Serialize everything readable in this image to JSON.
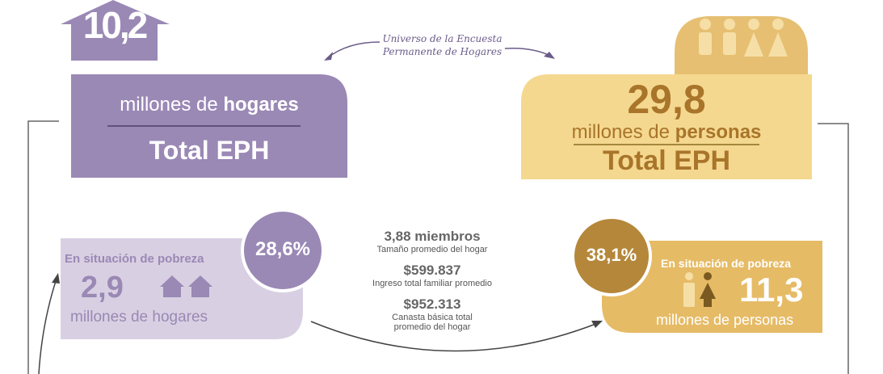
{
  "households": {
    "value": "10,2",
    "unit": "millones de ",
    "unit_bold": "hogares",
    "total": "Total EPH"
  },
  "universe": {
    "line1": "Universo de la Encuesta",
    "line2": "Permanente de Hogares"
  },
  "persons": {
    "value": "29,8",
    "unit": "millones de ",
    "unit_bold": "personas",
    "total": "Total EPH"
  },
  "poor_households": {
    "label": "En situación de pobreza",
    "value": "2,9",
    "unit": "millones de hogares",
    "percent": "28,6%"
  },
  "stats": [
    {
      "value": "3,88 miembros",
      "lines": [
        "Tamaño promedio del hogar"
      ]
    },
    {
      "value": "$599.837",
      "lines": [
        "Ingreso total familiar promedio"
      ]
    },
    {
      "value": "$952.313",
      "lines": [
        "Canasta básica total",
        "promedio del hogar"
      ]
    }
  ],
  "poor_persons": {
    "percent": "38,1%",
    "label": "En situación de pobreza",
    "value": "11,3",
    "unit": "millones de personas"
  }
}
